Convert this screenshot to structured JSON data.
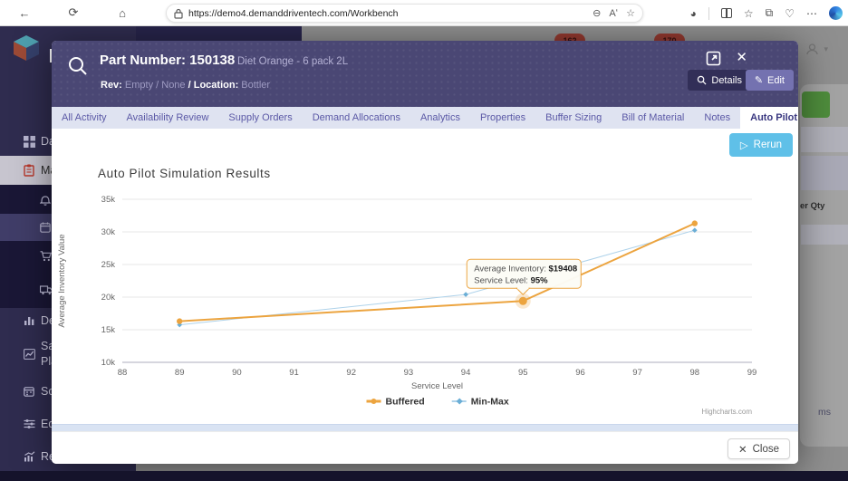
{
  "browser": {
    "url": "https://demo4.demanddriventech.com/Workbench",
    "left_icons": [
      "back-icon",
      "refresh-icon",
      "home-icon"
    ],
    "url_right_icons": [
      "zoom-out-icon",
      "read-aloud-icon",
      "favorite-star-icon"
    ],
    "right_icons": [
      "browser-essentials-icon",
      "split-screen-icon",
      "favorites-bar-icon",
      "collections-icon",
      "browser-health-icon",
      "more-icon",
      "copilot-icon"
    ]
  },
  "app_background": {
    "badges": [
      "162",
      "170"
    ],
    "column_header_fragment": "er Qty",
    "items_fragment": "ms"
  },
  "sidebar": {
    "items": [
      {
        "icon": "grid-icon",
        "lines": [
          "Da"
        ],
        "state": "normal"
      },
      {
        "icon": "clipboard-icon",
        "lines": [
          "Ma"
        ],
        "state": "selected"
      },
      {
        "icon": "bell-icon",
        "lines": [],
        "state": "dark"
      },
      {
        "icon": "calendar-icon",
        "lines": [],
        "state": "submenu-active"
      },
      {
        "icon": "cart-icon",
        "lines": [],
        "state": "dark"
      },
      {
        "icon": "truck-icon",
        "lines": [],
        "state": "dark"
      },
      {
        "icon": "bar-chart-icon",
        "lines": [
          "De"
        ],
        "state": "normal"
      },
      {
        "icon": "line-chart-icon",
        "lines": [
          "Sa",
          "Pla"
        ],
        "state": "normal"
      },
      {
        "icon": "schedule-icon",
        "lines": [
          "Sc"
        ],
        "state": "normal"
      },
      {
        "icon": "sliders-icon",
        "lines": [
          "Ed"
        ],
        "state": "normal"
      },
      {
        "icon": "trend-icon",
        "lines": [
          "Re"
        ],
        "state": "normal"
      }
    ]
  },
  "modal": {
    "header": {
      "title": "Part Number: 150138",
      "description": "Diet Orange - 6 pack 2L",
      "rev_label": "Rev:",
      "rev_value": "Empty / None",
      "separator": "/",
      "location_label": "Location:",
      "location_value": "Bottler",
      "details_button": "Details",
      "edit_button": "Edit",
      "close_glyph": "✕"
    },
    "tabs": [
      "All Activity",
      "Availability Review",
      "Supply Orders",
      "Demand Allocations",
      "Analytics",
      "Properties",
      "Buffer Sizing",
      "Bill of Material",
      "Notes",
      "Auto Pilot",
      "Auto Pilot Simulations"
    ],
    "active_tab": "Auto Pilot",
    "rerun_button": "Rerun",
    "close_button": "Close"
  },
  "chart_data": {
    "type": "line",
    "title": "Auto Pilot Simulation Results",
    "xlabel": "Service Level",
    "ylabel": "Average Inventory Value",
    "xlim": [
      88,
      99
    ],
    "ylim": [
      10000,
      35000
    ],
    "x_ticks": [
      88,
      89,
      90,
      91,
      92,
      93,
      94,
      95,
      96,
      97,
      98,
      99
    ],
    "y_ticks": [
      {
        "v": 10000,
        "label": "10k"
      },
      {
        "v": 15000,
        "label": "15k"
      },
      {
        "v": 20000,
        "label": "20k"
      },
      {
        "v": 25000,
        "label": "25k"
      },
      {
        "v": 30000,
        "label": "30k"
      },
      {
        "v": 35000,
        "label": "35k"
      }
    ],
    "grid": true,
    "legend_position": "bottom",
    "series": [
      {
        "name": "Min-Max",
        "color": "#aed2ea",
        "marker_color": "#6baed6",
        "width": 1,
        "points": [
          [
            89,
            15750
          ],
          [
            94,
            20400
          ],
          [
            98,
            30250
          ]
        ]
      },
      {
        "name": "Buffered",
        "color": "#eca43f",
        "marker_color": "#eca43f",
        "width": 2,
        "points": [
          [
            89,
            16300
          ],
          [
            95,
            19408
          ],
          [
            98,
            31300
          ]
        ]
      }
    ],
    "legend": [
      "Buffered",
      "Min-Max"
    ],
    "highlight_point": {
      "series": "Buffered",
      "x": 95,
      "y": 19408
    },
    "tooltip": {
      "line1_label": "Average Inventory:",
      "line1_value": "$19408",
      "line2_label": "Service Level:",
      "line2_value": "95%"
    },
    "credits": "Highcharts.com"
  }
}
